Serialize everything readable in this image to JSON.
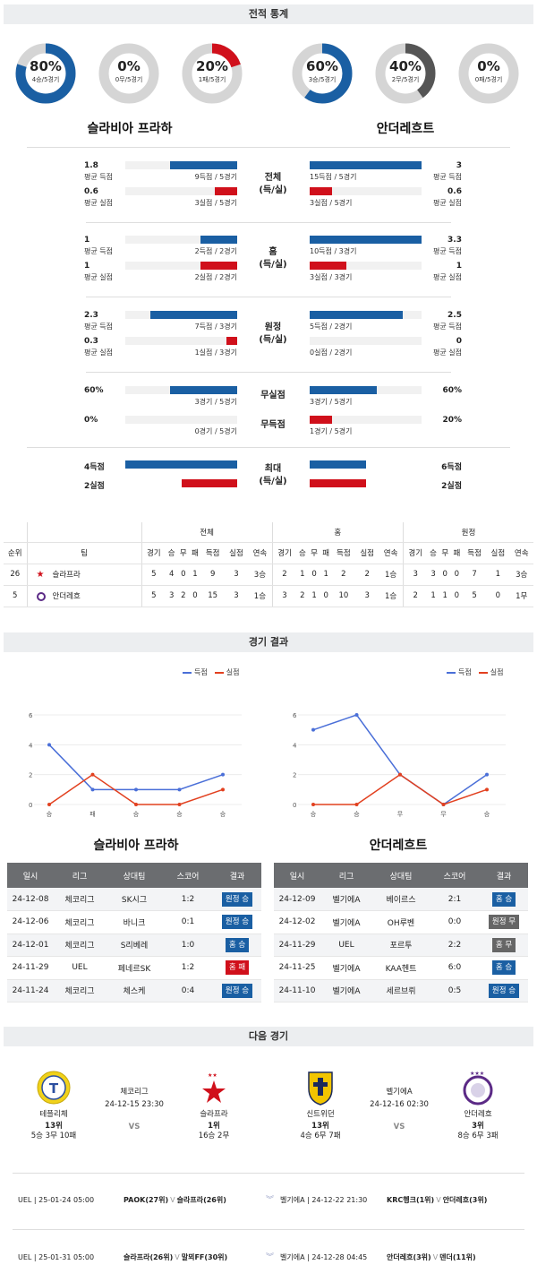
{
  "sections": {
    "stats": "전적 통계",
    "results": "경기 결과",
    "next": "다음 경기"
  },
  "donuts": [
    {
      "pct_label": "80%",
      "sub": "4승/5경기",
      "fraction": 0.8,
      "color": "#1a5fa3"
    },
    {
      "pct_label": "0%",
      "sub": "0무/5경기",
      "fraction": 0,
      "color": "#666666"
    },
    {
      "pct_label": "20%",
      "sub": "1패/5경기",
      "fraction": 0.2,
      "color": "#d0101b"
    },
    {
      "pct_label": "60%",
      "sub": "3승/5경기",
      "fraction": 0.6,
      "color": "#1a5fa3"
    },
    {
      "pct_label": "40%",
      "sub": "2무/5경기",
      "fraction": 0.4,
      "color": "#555555"
    },
    {
      "pct_label": "0%",
      "sub": "0패/5경기",
      "fraction": 0,
      "color": "#d0101b"
    }
  ],
  "teams": {
    "home": "슬라비아 프라하",
    "away": "안더레흐트"
  },
  "stat_groups": [
    {
      "mid": "전체",
      "mid2": "(득/실)",
      "rows": [
        {
          "lv": "1.8",
          "ll": "평균 득점",
          "lcap": "9득점 / 5경기",
          "lfrac": 0.6,
          "rv": "3",
          "rl": "평균 득점",
          "rcap": "15득점 / 5경기",
          "rfrac": 1.0,
          "color": "blue"
        },
        {
          "lv": "0.6",
          "ll": "평균 실점",
          "lcap": "3실점 / 5경기",
          "lfrac": 0.2,
          "rv": "0.6",
          "rl": "평균 실점",
          "rcap": "3실점 / 5경기",
          "rfrac": 0.2,
          "color": "red"
        }
      ]
    },
    {
      "mid": "홈",
      "mid2": "(득/실)",
      "rows": [
        {
          "lv": "1",
          "ll": "평균 득점",
          "lcap": "2득점 / 2경기",
          "lfrac": 0.33,
          "rv": "3.3",
          "rl": "평균 득점",
          "rcap": "10득점 / 3경기",
          "rfrac": 1.0,
          "color": "blue"
        },
        {
          "lv": "1",
          "ll": "평균 실점",
          "lcap": "2실점 / 2경기",
          "lfrac": 0.33,
          "rv": "1",
          "rl": "평균 실점",
          "rcap": "3실점 / 3경기",
          "rfrac": 0.33,
          "color": "red"
        }
      ]
    },
    {
      "mid": "원정",
      "mid2": "(득/실)",
      "rows": [
        {
          "lv": "2.3",
          "ll": "평균 득점",
          "lcap": "7득점 / 3경기",
          "lfrac": 0.78,
          "rv": "2.5",
          "rl": "평균 득점",
          "rcap": "5득점 / 2경기",
          "rfrac": 0.83,
          "color": "blue"
        },
        {
          "lv": "0.3",
          "ll": "평균 실점",
          "lcap": "1실점 / 3경기",
          "lfrac": 0.1,
          "rv": "0",
          "rl": "평균 실점",
          "rcap": "0실점 / 2경기",
          "rfrac": 0,
          "color": "red"
        }
      ]
    }
  ],
  "clean": {
    "rows": [
      {
        "mid": "무실점",
        "lv": "60%",
        "lcap": "3경기 / 5경기",
        "lfrac": 0.6,
        "rv": "60%",
        "rcap": "3경기 / 5경기",
        "rfrac": 0.6,
        "color": "blue"
      },
      {
        "mid": "무득점",
        "lv": "0%",
        "lcap": "0경기 / 5경기",
        "lfrac": 0,
        "rv": "20%",
        "rcap": "1경기 / 5경기",
        "rfrac": 0.2,
        "color": "red"
      }
    ]
  },
  "maxes": {
    "mid": "최대",
    "mid2": "(득/실)",
    "lgoal": "4득점",
    "lconc": "2실점",
    "rgoal": "6득점",
    "rconc": "2실점",
    "lgfrac": 1.0,
    "lcfrac": 0.5,
    "rgfrac": 0.5,
    "rcfrac": 0.5
  },
  "standings": {
    "groups": [
      "전체",
      "홈",
      "원정"
    ],
    "headers": [
      "순위",
      "팀",
      "경기",
      "승",
      "무",
      "패",
      "득점",
      "실점",
      "연속",
      "경기",
      "승",
      "무",
      "패",
      "득점",
      "실점",
      "연속",
      "경기",
      "승",
      "무",
      "패",
      "득점",
      "실점",
      "연속"
    ],
    "rows": [
      {
        "rank": "26",
        "team": "슬라프라",
        "vals": [
          "5",
          "4",
          "0",
          "1",
          "9",
          "3",
          "3승",
          "2",
          "1",
          "0",
          "1",
          "2",
          "2",
          "1승",
          "3",
          "3",
          "0",
          "0",
          "7",
          "1",
          "3승"
        ]
      },
      {
        "rank": "5",
        "team": "안더레흐",
        "vals": [
          "5",
          "3",
          "2",
          "0",
          "15",
          "3",
          "1승",
          "3",
          "2",
          "1",
          "0",
          "10",
          "3",
          "1승",
          "2",
          "1",
          "1",
          "0",
          "5",
          "0",
          "1무"
        ]
      }
    ]
  },
  "line_charts": [
    {
      "legend": [
        "득점",
        "실점"
      ],
      "categories": [
        "승",
        "패",
        "승",
        "승",
        "승"
      ],
      "goals": [
        4,
        1,
        1,
        1,
        2
      ],
      "conceded": [
        0,
        2,
        0,
        0,
        1
      ],
      "yticks": [
        "0",
        "2",
        "4",
        "6"
      ],
      "ylim": [
        0,
        6
      ]
    },
    {
      "legend": [
        "득점",
        "실점"
      ],
      "categories": [
        "승",
        "승",
        "무",
        "무",
        "승"
      ],
      "goals": [
        5,
        6,
        2,
        0,
        2
      ],
      "conceded": [
        0,
        0,
        2,
        0,
        1
      ],
      "yticks": [
        "0",
        "2",
        "4",
        "6"
      ],
      "ylim": [
        0,
        6
      ]
    }
  ],
  "result_tables": [
    {
      "title": "슬라비아 프라하",
      "headers": [
        "일시",
        "리그",
        "상대팀",
        "스코어",
        "결과"
      ],
      "rows": [
        {
          "date": "24-12-08",
          "league": "체코리그",
          "opp": "SK시그",
          "score": "1:2",
          "result": "원정 승",
          "cls": "b-blue"
        },
        {
          "date": "24-12-06",
          "league": "체코리그",
          "opp": "바니크",
          "score": "0:1",
          "result": "원정 승",
          "cls": "b-blue"
        },
        {
          "date": "24-12-01",
          "league": "체코리그",
          "opp": "S리베레",
          "score": "1:0",
          "result": "홈 승",
          "cls": "b-blue"
        },
        {
          "date": "24-11-29",
          "league": "UEL",
          "opp": "페네르SK",
          "score": "1:2",
          "result": "홈 패",
          "cls": "b-red"
        },
        {
          "date": "24-11-24",
          "league": "체코리그",
          "opp": "체스케",
          "score": "0:4",
          "result": "원정 승",
          "cls": "b-blue"
        }
      ]
    },
    {
      "title": "안더레흐트",
      "headers": [
        "일시",
        "리그",
        "상대팀",
        "스코어",
        "결과"
      ],
      "rows": [
        {
          "date": "24-12-09",
          "league": "벨기에A",
          "opp": "베이르스",
          "score": "2:1",
          "result": "홈 승",
          "cls": "b-blue"
        },
        {
          "date": "24-12-02",
          "league": "벨기에A",
          "opp": "OH루벤",
          "score": "0:0",
          "result": "원정 무",
          "cls": "b-gray"
        },
        {
          "date": "24-11-29",
          "league": "UEL",
          "opp": "포르투",
          "score": "2:2",
          "result": "홈 무",
          "cls": "b-gray"
        },
        {
          "date": "24-11-25",
          "league": "벨기에A",
          "opp": "KAA헨트",
          "score": "6:0",
          "result": "홈 승",
          "cls": "b-blue"
        },
        {
          "date": "24-11-10",
          "league": "벨기에A",
          "opp": "세르브뤼",
          "score": "0:5",
          "result": "원정 승",
          "cls": "b-blue"
        }
      ]
    }
  ],
  "next_matches": [
    {
      "league": "체코리그",
      "datetime": "24-12-15 23:30",
      "vs": "VS",
      "home": {
        "name": "테플리체",
        "rank": "13위",
        "record": "5승 3무 10패"
      },
      "away": {
        "name": "슬라프라",
        "rank": "1위",
        "record": "16승 2무"
      }
    },
    {
      "league": "벨기에A",
      "datetime": "24-12-16 02:30",
      "vs": "VS",
      "home": {
        "name": "신트위던",
        "rank": "13위",
        "record": "4승 6무 7패"
      },
      "away": {
        "name": "안더레흐",
        "rank": "3위",
        "record": "8승 6무 3패"
      }
    }
  ],
  "future": [
    {
      "a": "UEL | 25-01-24 05:00",
      "b": "PAOK(27위)",
      "bv": "V",
      "c": "슬라프라(26위)",
      "d": "벨기에A | 24-12-22 21:30",
      "e": "KRC헹크(1위)",
      "ev": "V",
      "f": "안더레흐(3위)"
    },
    {
      "a": "UEL | 25-01-31 05:00",
      "b": "슬라프라(26위)",
      "bv": "V",
      "c": "말뫼FF(30위)",
      "d": "벨기에A | 24-12-28 04:45",
      "e": "안더레흐(3위)",
      "ev": "V",
      "f": "덴더(11위)"
    }
  ]
}
